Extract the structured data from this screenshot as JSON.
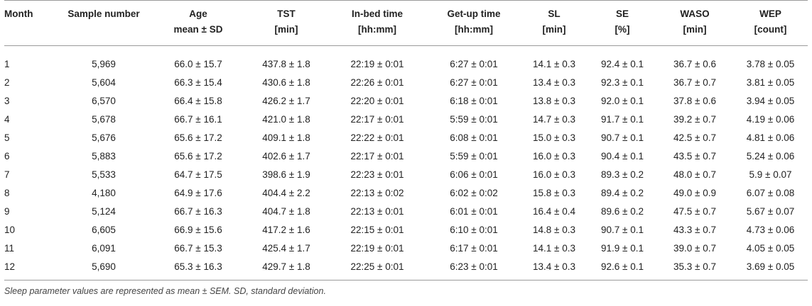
{
  "table": {
    "headers_line1": [
      "Month",
      "Sample number",
      "Age",
      "TST",
      "In-bed time",
      "Get-up time",
      "SL",
      "SE",
      "WASO",
      "WEP"
    ],
    "headers_line2": [
      "",
      "",
      "mean ± SD",
      "[min]",
      "[hh:mm]",
      "[hh:mm]",
      "[min]",
      "[%]",
      "[min]",
      "[count]"
    ],
    "rows": [
      [
        "1",
        "5,969",
        "66.0 ± 15.7",
        "437.8 ± 1.8",
        "22:19 ± 0:01",
        "6:27 ± 0:01",
        "14.1 ± 0.3",
        "92.4 ± 0.1",
        "36.7 ± 0.6",
        "3.78 ± 0.05"
      ],
      [
        "2",
        "5,604",
        "66.3 ± 15.4",
        "430.6 ± 1.8",
        "22:26 ± 0:01",
        "6:27 ± 0:01",
        "13.4 ± 0.3",
        "92.3 ± 0.1",
        "36.7 ± 0.7",
        "3.81 ± 0.05"
      ],
      [
        "3",
        "6,570",
        "66.4 ± 15.8",
        "426.2 ± 1.7",
        "22:20 ± 0:01",
        "6:18 ± 0:01",
        "13.8 ± 0.3",
        "92.0 ± 0.1",
        "37.8 ± 0.6",
        "3.94 ± 0.05"
      ],
      [
        "4",
        "5,678",
        "66.7 ± 16.1",
        "421.0 ± 1.8",
        "22:17 ± 0:01",
        "5:59 ± 0:01",
        "14.7 ± 0.3",
        "91.7 ± 0.1",
        "39.2 ± 0.7",
        "4.19 ± 0.06"
      ],
      [
        "5",
        "5,676",
        "65.6 ± 17.2",
        "409.1 ± 1.8",
        "22:22 ± 0:01",
        "6:08 ± 0:01",
        "15.0 ± 0.3",
        "90.7 ± 0.1",
        "42.5 ± 0.7",
        "4.81 ± 0.06"
      ],
      [
        "6",
        "5,883",
        "65.6 ± 17.2",
        "402.6 ± 1.7",
        "22:17 ± 0:01",
        "5:59 ± 0:01",
        "16.0 ± 0.3",
        "90.4 ± 0.1",
        "43.5 ± 0.7",
        "5.24 ± 0.06"
      ],
      [
        "7",
        "5,533",
        "64.7 ± 17.5",
        "398.6 ± 1.9",
        "22:23 ± 0:01",
        "6:06 ± 0:01",
        "16.0 ± 0.3",
        "89.3 ± 0.2",
        "48.0 ± 0.7",
        "5.9 ± 0.07"
      ],
      [
        "8",
        "4,180",
        "64.9 ± 17.6",
        "404.4 ± 2.2",
        "22:13 ± 0:02",
        "6:02 ± 0:02",
        "15.8 ± 0.3",
        "89.4 ± 0.2",
        "49.0 ± 0.9",
        "6.07 ± 0.08"
      ],
      [
        "9",
        "5,124",
        "66.7 ± 16.3",
        "404.7 ± 1.8",
        "22:13 ± 0:01",
        "6:01 ± 0:01",
        "16.4 ± 0.4",
        "89.6 ± 0.2",
        "47.5 ± 0.7",
        "5.67 ± 0.07"
      ],
      [
        "10",
        "6,605",
        "66.9 ± 15.6",
        "417.2 ± 1.6",
        "22:15 ± 0:01",
        "6:10 ± 0:01",
        "14.8 ± 0.3",
        "90.7 ± 0.1",
        "43.3 ± 0.7",
        "4.73 ± 0.06"
      ],
      [
        "11",
        "6,091",
        "66.7 ± 15.3",
        "425.4 ± 1.7",
        "22:19 ± 0:01",
        "6:17 ± 0:01",
        "14.1 ± 0.3",
        "91.9 ± 0.1",
        "39.0 ± 0.7",
        "4.05 ± 0.05"
      ],
      [
        "12",
        "5,690",
        "65.3 ± 16.3",
        "429.7 ± 1.8",
        "22:25 ± 0:01",
        "6:23 ± 0:01",
        "13.4 ± 0.3",
        "92.6 ± 0.1",
        "35.3 ± 0.7",
        "3.69 ± 0.05"
      ]
    ]
  },
  "footnote": "Sleep parameter values are represented as mean ± SEM. SD, standard deviation."
}
